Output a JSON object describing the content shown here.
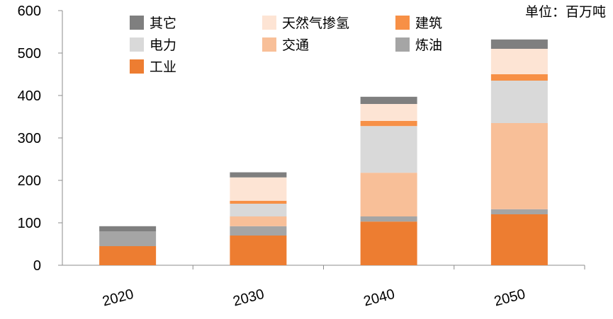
{
  "chart_data": {
    "type": "bar",
    "stacked": true,
    "unit_label": "单位：百万吨",
    "categories": [
      "2020",
      "2030",
      "2040",
      "2050"
    ],
    "ylim": [
      0,
      600
    ],
    "yticks": [
      0,
      100,
      200,
      300,
      400,
      500,
      600
    ],
    "grid": false,
    "legend": "top",
    "series": [
      {
        "name": "工业",
        "color": "#ED7D31",
        "values": [
          45,
          70,
          103,
          120
        ]
      },
      {
        "name": "炼油",
        "color": "#A5A5A5",
        "values": [
          35,
          22,
          12,
          12
        ]
      },
      {
        "name": "交通",
        "color": "#F8BF98",
        "values": [
          0,
          23,
          103,
          203
        ]
      },
      {
        "name": "电力",
        "color": "#D9D9D9",
        "values": [
          0,
          30,
          110,
          100
        ]
      },
      {
        "name": "建筑",
        "color": "#F79046",
        "values": [
          0,
          7,
          12,
          15
        ]
      },
      {
        "name": "天然气掺氢",
        "color": "#FDE4D4",
        "values": [
          0,
          55,
          40,
          60
        ]
      },
      {
        "name": "其它",
        "color": "#7F7F7F",
        "values": [
          12,
          12,
          17,
          22
        ]
      }
    ],
    "legend_order": [
      "其它",
      "天然气掺氢",
      "建筑",
      "电力",
      "交通",
      "炼油",
      "工业"
    ]
  }
}
